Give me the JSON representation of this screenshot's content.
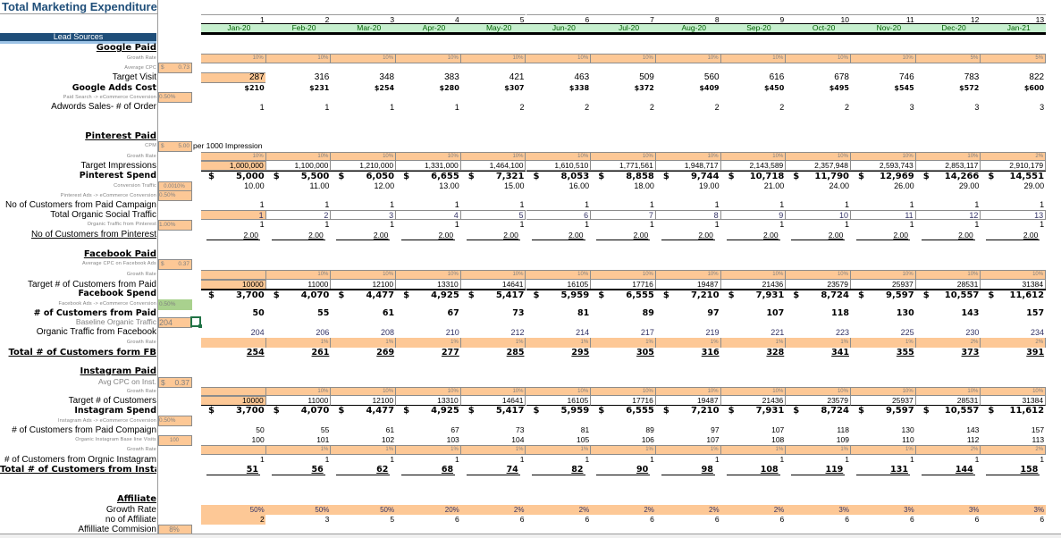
{
  "title": "Total Marketing Expenditure",
  "lead_sources_label": "Lead Sources",
  "months": {
    "index": [
      "1",
      "2",
      "3",
      "4",
      "5",
      "6",
      "7",
      "8",
      "9",
      "10",
      "11",
      "12",
      "13"
    ],
    "labels": [
      "Jan-20",
      "Feb-20",
      "Mar-20",
      "Apr-20",
      "May-20",
      "Jun-20",
      "Jul-20",
      "Aug-20",
      "Sep-20",
      "Oct-20",
      "Nov-20",
      "Dec-20",
      "Jan-21"
    ]
  },
  "google": {
    "section_label": "Google Paid",
    "growth_rate_label": "Growth Rate",
    "growth_rate": [
      "10%",
      "10%",
      "10%",
      "10%",
      "10%",
      "10%",
      "10%",
      "10%",
      "10%",
      "10%",
      "10%",
      "5%",
      "5%"
    ],
    "avg_cpc_label": "Average CPC",
    "avg_cpc_currency": "$",
    "avg_cpc": "0.73",
    "target_visit_label": "Target Visit",
    "target_visit": [
      "287",
      "316",
      "348",
      "383",
      "421",
      "463",
      "509",
      "560",
      "616",
      "678",
      "746",
      "783",
      "822"
    ],
    "adds_cost_label": "Google Adds Cost",
    "adds_cost": [
      "$210",
      "$231",
      "$254",
      "$280",
      "$307",
      "$338",
      "$372",
      "$409",
      "$450",
      "$495",
      "$545",
      "$572",
      "$600"
    ],
    "conversion_label": "Paid Search -> eCommerce Conversion",
    "conversion": "0.50%",
    "orders_label": "Adwords Sales- # of Order",
    "orders": [
      "1",
      "1",
      "1",
      "1",
      "2",
      "2",
      "2",
      "2",
      "2",
      "2",
      "3",
      "3",
      "3"
    ]
  },
  "pinterest": {
    "section_label": "Pinterest Paid",
    "cpm_label": "CPM",
    "cpm_currency": "$",
    "cpm": "5.00",
    "cpm_note": "per 1000 Impression",
    "growth_rate_label": "Growth Rate",
    "growth_rate": [
      "10%",
      "10%",
      "10%",
      "10%",
      "10%",
      "10%",
      "10%",
      "10%",
      "10%",
      "10%",
      "10%",
      "10%",
      "2%"
    ],
    "impressions_label": "Target Impressions",
    "impressions": [
      "1,000,000",
      "1,100,000",
      "1,210,000",
      "1,331,000",
      "1,464,100",
      "1,610,510",
      "1,771,561",
      "1,948,717",
      "2,143,589",
      "2,357,948",
      "2,593,743",
      "2,853,117",
      "2,910,179"
    ],
    "spend_label": "Pinterest Spend",
    "spend_currency": "$",
    "spend": [
      "5,000",
      "5,500",
      "6,050",
      "6,655",
      "7,321",
      "8,053",
      "8,858",
      "9,744",
      "10,718",
      "11,790",
      "12,969",
      "14,266",
      "14,551"
    ],
    "conversion_traffic_label": "Conversion Traffic",
    "conversion_traffic": "0.0010%",
    "conversion_traffic_values": [
      "10.00",
      "11.00",
      "12.00",
      "13.00",
      "15.00",
      "16.00",
      "18.00",
      "19.00",
      "21.00",
      "24.00",
      "26.00",
      "29.00",
      "29.00"
    ],
    "ads_conversion_label": "Pinterest Ads -> eCommerce Conversion",
    "ads_conversion": "0.50%",
    "paid_customers_label": "No of Customers from Paid Campaign",
    "paid_customers": [
      "1",
      "1",
      "1",
      "1",
      "1",
      "1",
      "1",
      "1",
      "1",
      "1",
      "1",
      "1",
      "1"
    ],
    "organic_traffic_label": "Total Organic Social Traffic",
    "organic_traffic": [
      "1",
      "2",
      "3",
      "4",
      "5",
      "6",
      "7",
      "8",
      "9",
      "10",
      "11",
      "12",
      "13"
    ],
    "organic_from_pinterest_label": "Organic Traffic from Pinterest",
    "organic_from_pinterest": "1.00%",
    "organic_from_pinterest_values": [
      "1",
      "1",
      "1",
      "1",
      "1",
      "1",
      "1",
      "1",
      "1",
      "1",
      "1",
      "1",
      "1"
    ],
    "total_customers_label": "No of Customers from Pinterest",
    "total_customers": [
      "2.00",
      "2.00",
      "2.00",
      "2.00",
      "2.00",
      "2.00",
      "2.00",
      "2.00",
      "2.00",
      "2.00",
      "2.00",
      "2.00",
      "2.00"
    ]
  },
  "facebook": {
    "section_label": "Facebook Paid",
    "avg_cpc_label": "Average CPC on Facebook Ads",
    "avg_cpc_currency": "$",
    "avg_cpc": "0.37",
    "growth_rate_label": "Growth Rate",
    "growth_rate": [
      "",
      "10%",
      "10%",
      "10%",
      "10%",
      "10%",
      "10%",
      "10%",
      "10%",
      "10%",
      "10%",
      "10%",
      "10%"
    ],
    "target_label": "Target # of Customers  from Paid",
    "target": [
      "10000",
      "11000",
      "12100",
      "13310",
      "14641",
      "16105",
      "17716",
      "19487",
      "21436",
      "23579",
      "25937",
      "28531",
      "31384"
    ],
    "spend_label": "Facebook Spend",
    "spend_currency": "$",
    "spend": [
      "3,700",
      "4,070",
      "4,477",
      "4,925",
      "5,417",
      "5,959",
      "6,555",
      "7,210",
      "7,931",
      "8,724",
      "9,597",
      "10,557",
      "11,612"
    ],
    "conversion_label": "Facebook Ads -> eCommerce Conversion",
    "conversion": "0.50%",
    "paid_customers_label": "# of Customers from Paid",
    "paid_customers": [
      "50",
      "55",
      "61",
      "67",
      "73",
      "81",
      "89",
      "97",
      "107",
      "118",
      "130",
      "143",
      "157"
    ],
    "baseline_label": "Baseline Organic Traffic",
    "baseline": "204",
    "organic_label": "Organic Traffic from Facebook",
    "organic": [
      "204",
      "206",
      "208",
      "210",
      "212",
      "214",
      "217",
      "219",
      "221",
      "223",
      "225",
      "230",
      "234"
    ],
    "organic_growth_label": "Growth Rate",
    "organic_growth": [
      "",
      "1%",
      "1%",
      "1%",
      "1%",
      "1%",
      "1%",
      "1%",
      "1%",
      "1%",
      "1%",
      "2%",
      "2%"
    ],
    "total_label": "Total # of Customers form FB",
    "total": [
      "254",
      "261",
      "269",
      "277",
      "285",
      "295",
      "305",
      "316",
      "328",
      "341",
      "355",
      "373",
      "391"
    ]
  },
  "instagram": {
    "section_label": "Instagram Paid",
    "avg_cpc_label": "Avg CPC on Inst.",
    "avg_cpc_currency": "$",
    "avg_cpc": "0.37",
    "growth_rate_label": "Growth Rate",
    "growth_rate": [
      "",
      "10%",
      "10%",
      "10%",
      "10%",
      "10%",
      "10%",
      "10%",
      "10%",
      "10%",
      "10%",
      "10%",
      "10%"
    ],
    "target_label": "Target # of Customers",
    "target": [
      "10000",
      "11000",
      "12100",
      "13310",
      "14641",
      "16105",
      "17716",
      "19487",
      "21436",
      "23579",
      "25937",
      "28531",
      "31384"
    ],
    "spend_label": "Instagram Spend",
    "spend_currency": "$",
    "spend": [
      "3,700",
      "4,070",
      "4,477",
      "4,925",
      "5,417",
      "5,959",
      "6,555",
      "7,210",
      "7,931",
      "8,724",
      "9,597",
      "10,557",
      "11,612"
    ],
    "conversion_label": "Instagram Ads -> eCommerce Conversion",
    "conversion": "0.50%",
    "paid_customers_label": "# of Customers from Paid Compaign",
    "paid_customers": [
      "50",
      "55",
      "61",
      "67",
      "73",
      "81",
      "89",
      "97",
      "107",
      "118",
      "130",
      "143",
      "157"
    ],
    "baseline_label": "Organic Instagram Base line Visits",
    "baseline": "100",
    "baseline_values": [
      "100",
      "101",
      "102",
      "103",
      "104",
      "105",
      "106",
      "107",
      "108",
      "109",
      "110",
      "112",
      "113"
    ],
    "organic_growth_label": "Growth Rate",
    "organic_growth": [
      "",
      "1%",
      "1%",
      "1%",
      "1%",
      "1%",
      "1%",
      "1%",
      "1%",
      "1%",
      "1%",
      "2%",
      "2%"
    ],
    "organic_customers_label": "# of Customers from Orgnic Instagram",
    "organic_customers": [
      "1",
      "1",
      "1",
      "1",
      "1",
      "1",
      "1",
      "1",
      "1",
      "1",
      "1",
      "1",
      "1"
    ],
    "total_label": "Total # of Customers from Instagram",
    "total": [
      "51",
      "56",
      "62",
      "68",
      "74",
      "82",
      "90",
      "98",
      "108",
      "119",
      "131",
      "144",
      "158"
    ]
  },
  "affiliate": {
    "section_label": "Affiliate",
    "growth_rate_label": "Growth Rate",
    "growth_rate": [
      "50%",
      "50%",
      "50%",
      "20%",
      "2%",
      "2%",
      "2%",
      "2%",
      "2%",
      "3%",
      "3%",
      "3%",
      "3%"
    ],
    "count_label": "no of Affiliate",
    "count": [
      "2",
      "3",
      "5",
      "6",
      "6",
      "6",
      "6",
      "6",
      "6",
      "6",
      "6",
      "6",
      "6"
    ],
    "commission_label": "Affilliate Commision",
    "commission": "8%"
  }
}
